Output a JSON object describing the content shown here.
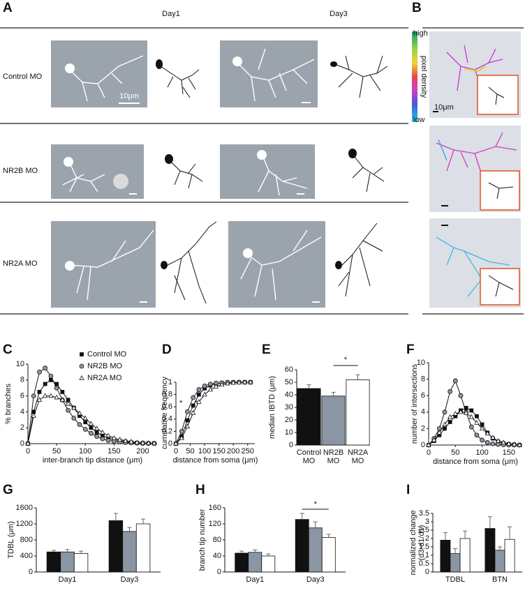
{
  "panel_a": {
    "label": "A",
    "columns": [
      "Day1",
      "Day3"
    ],
    "rows": [
      "Control MO",
      "NR2B MO",
      "NR2A MO"
    ],
    "scale_bar": "10μm"
  },
  "panel_b": {
    "label": "B",
    "colorbar_high": "high",
    "colorbar_low": "low",
    "colorbar_label": "pixel density",
    "scale_bar": "10μm"
  },
  "chart_data": [
    {
      "type": "line",
      "label": "C",
      "x_label": "inter-branch tip distance (μm)",
      "y_label": "% branches",
      "legend": "upper right",
      "x": [
        0,
        10,
        20,
        30,
        40,
        50,
        60,
        70,
        80,
        90,
        100,
        110,
        120,
        130,
        140,
        150,
        160,
        170,
        180,
        190,
        200,
        210,
        220
      ],
      "xlim": [
        0,
        225
      ],
      "xticks": [
        0,
        50,
        100,
        150,
        200
      ],
      "ylim": [
        0,
        10
      ],
      "yticks": [
        0,
        2,
        4,
        6,
        8,
        10
      ],
      "series": [
        {
          "name": "Control MO",
          "color": "#111111",
          "marker": "square",
          "values": [
            0,
            4,
            6.5,
            7.5,
            8,
            7.5,
            6.5,
            5.5,
            4.5,
            3.5,
            2.7,
            2,
            1.4,
            1,
            0.7,
            0.5,
            0.35,
            0.25,
            0.15,
            0.1,
            0.07,
            0.05,
            0.03
          ]
        },
        {
          "name": "NR2B MO",
          "color": "#8a96a4",
          "marker": "circle",
          "values": [
            0,
            6,
            9,
            9.5,
            8.5,
            7,
            5.5,
            4.2,
            3.2,
            2.4,
            1.8,
            1.3,
            0.9,
            0.6,
            0.4,
            0.3,
            0.2,
            0.15,
            0.1,
            0.07,
            0.05,
            0.03,
            0.02
          ]
        },
        {
          "name": "NR2A MO",
          "color": "#ffffff",
          "marker": "triangle",
          "values": [
            0,
            3.5,
            5.5,
            6,
            6,
            5.8,
            5.5,
            5,
            4.5,
            3.8,
            3.2,
            2.5,
            1.9,
            1.4,
            1,
            0.7,
            0.5,
            0.35,
            0.25,
            0.15,
            0.1,
            0.07,
            0.05
          ]
        }
      ]
    },
    {
      "type": "line",
      "label": "D",
      "x_label": "distance from soma (μm)",
      "y_label": "cumulative frequency",
      "annotations": [
        "*",
        "*"
      ],
      "x": [
        0,
        20,
        40,
        60,
        80,
        100,
        120,
        140,
        160,
        180,
        200,
        220,
        240,
        260
      ],
      "xlim": [
        0,
        275
      ],
      "xticks": [
        0,
        50,
        100,
        150,
        200,
        250
      ],
      "ylim": [
        0,
        1
      ],
      "yticks": [
        0,
        0.2,
        0.4,
        0.6,
        0.8,
        1
      ],
      "series": [
        {
          "name": "Control MO",
          "color": "#111111",
          "marker": "square",
          "values": [
            0,
            0.12,
            0.38,
            0.62,
            0.8,
            0.9,
            0.95,
            0.975,
            0.99,
            0.995,
            1,
            1,
            1,
            1
          ]
        },
        {
          "name": "NR2B MO",
          "color": "#8a96a4",
          "marker": "circle",
          "values": [
            0,
            0.2,
            0.52,
            0.75,
            0.88,
            0.94,
            0.97,
            0.985,
            0.99,
            1,
            1,
            1,
            1,
            1
          ]
        },
        {
          "name": "NR2A MO",
          "color": "#ffffff",
          "marker": "triangle",
          "values": [
            0,
            0.09,
            0.28,
            0.5,
            0.68,
            0.8,
            0.88,
            0.93,
            0.96,
            0.98,
            0.99,
            0.995,
            1,
            1
          ]
        }
      ]
    },
    {
      "type": "bar",
      "label": "E",
      "y_label": "median IBTD (μm)",
      "annotation": "*",
      "categories": [
        "Control MO",
        "NR2B MO",
        "NR2A MO"
      ],
      "values": [
        45,
        39,
        52
      ],
      "errors": [
        3,
        3,
        4
      ],
      "colors": [
        "#111111",
        "#8a96a4",
        "#ffffff"
      ],
      "ylim": [
        0,
        60
      ],
      "yticks": [
        0,
        10,
        20,
        30,
        40,
        50,
        60
      ]
    },
    {
      "type": "line",
      "label": "F",
      "x_label": "distance from soma (μm)",
      "y_label": "number of intersections",
      "x": [
        0,
        10,
        20,
        30,
        40,
        50,
        60,
        70,
        80,
        90,
        100,
        110,
        120,
        130,
        140,
        150,
        160,
        170
      ],
      "xlim": [
        0,
        175
      ],
      "xticks": [
        0,
        50,
        100,
        150
      ],
      "ylim": [
        0,
        10
      ],
      "yticks": [
        0,
        2,
        4,
        6,
        8,
        10
      ],
      "series": [
        {
          "name": "Control MO",
          "color": "#111111",
          "marker": "square",
          "values": [
            0,
            0.5,
            1.2,
            2,
            2.8,
            3.5,
            4.2,
            4.5,
            4.2,
            3.5,
            2.5,
            1.5,
            0.8,
            0.4,
            0.2,
            0.1,
            0.05,
            0
          ]
        },
        {
          "name": "NR2B MO",
          "color": "#8a96a4",
          "marker": "circle",
          "values": [
            0,
            0.8,
            2,
            4,
            6.5,
            7.8,
            6,
            4,
            2.2,
            1.2,
            0.6,
            0.3,
            0.15,
            0.08,
            0.03,
            0,
            0,
            0
          ]
        },
        {
          "name": "NR2A MO",
          "color": "#ffffff",
          "marker": "triangle",
          "values": [
            0,
            0.6,
            1.5,
            2.5,
            3.4,
            3.8,
            4,
            3.9,
            3.4,
            2.7,
            2,
            1.4,
            0.9,
            0.5,
            0.3,
            0.15,
            0.08,
            0
          ]
        }
      ]
    },
    {
      "type": "bar",
      "label": "G",
      "y_label": "TDBL (μm)",
      "categories": [
        "Day1",
        "Day3"
      ],
      "ylim": [
        0,
        1600
      ],
      "yticks": [
        0,
        400,
        800,
        1200,
        1600
      ],
      "series": [
        {
          "color": "#111111",
          "values": [
            500,
            1280
          ],
          "errors": [
            40,
            180
          ]
        },
        {
          "color": "#8a96a4",
          "values": [
            500,
            1010
          ],
          "errors": [
            60,
            100
          ]
        },
        {
          "color": "#ffffff",
          "values": [
            460,
            1200
          ],
          "errors": [
            60,
            120
          ]
        }
      ]
    },
    {
      "type": "bar",
      "label": "H",
      "y_label": "branch tip number",
      "annotation": "*",
      "categories": [
        "Day1",
        "Day3"
      ],
      "ylim": [
        0,
        160
      ],
      "yticks": [
        0,
        40,
        80,
        120,
        160
      ],
      "series": [
        {
          "color": "#111111",
          "values": [
            47,
            131
          ],
          "errors": [
            5,
            15
          ]
        },
        {
          "color": "#8a96a4",
          "values": [
            49,
            110
          ],
          "errors": [
            6,
            15
          ]
        },
        {
          "color": "#ffffff",
          "values": [
            40,
            86
          ],
          "errors": [
            5,
            8
          ]
        }
      ]
    },
    {
      "type": "bar",
      "label": "I",
      "y_label": [
        "normalized change",
        "(d3-d1/d1)"
      ],
      "categories": [
        "TDBL",
        "BTN"
      ],
      "ylim": [
        0,
        3.5
      ],
      "yticks": [
        0,
        0.5,
        1,
        1.5,
        2,
        2.5,
        3,
        3.5
      ],
      "series": [
        {
          "color": "#111111",
          "values": [
            1.9,
            2.6
          ],
          "errors": [
            0.45,
            0.7
          ]
        },
        {
          "color": "#8a96a4",
          "values": [
            1.1,
            1.3
          ],
          "errors": [
            0.3,
            0.2
          ]
        },
        {
          "color": "#ffffff",
          "values": [
            2.0,
            1.95
          ],
          "errors": [
            0.45,
            0.75
          ]
        }
      ]
    }
  ]
}
